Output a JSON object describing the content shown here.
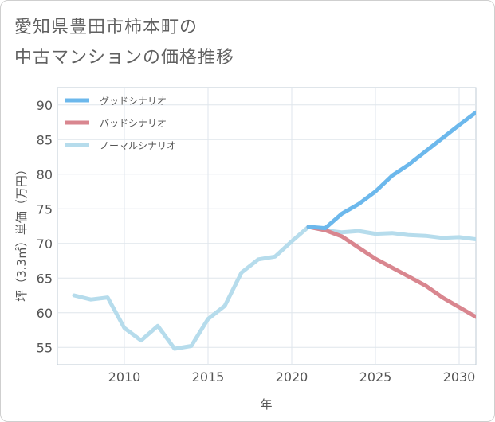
{
  "title_lines": [
    "愛知県豊田市柿本町の",
    "中古マンションの価格推移"
  ],
  "chart_data": {
    "type": "line",
    "xlabel": "年",
    "ylabel": "坪（3.3㎡）単価（万円）",
    "xlim": [
      2006,
      2031
    ],
    "ylim": [
      52.5,
      92.5
    ],
    "x_ticks": [
      2010,
      2015,
      2020,
      2025,
      2030
    ],
    "y_ticks": [
      55,
      60,
      65,
      70,
      75,
      80,
      85,
      90
    ],
    "grid": true,
    "legend_position": "top-left",
    "series": [
      {
        "name": "グッドシナリオ",
        "color": "#6cb8ec",
        "x": [
          2021,
          2022,
          2023,
          2024,
          2025,
          2026,
          2027,
          2028,
          2029,
          2030,
          2031
        ],
        "y": [
          72.4,
          72.2,
          74.3,
          75.7,
          77.5,
          79.8,
          81.4,
          83.3,
          85.2,
          87.1,
          88.9
        ]
      },
      {
        "name": "バッドシナリオ",
        "color": "#d9868f",
        "x": [
          2021,
          2022,
          2023,
          2024,
          2025,
          2026,
          2027,
          2028,
          2029,
          2030,
          2031
        ],
        "y": [
          72.4,
          71.9,
          71.0,
          69.4,
          67.8,
          66.5,
          65.2,
          63.9,
          62.2,
          60.8,
          59.4
        ]
      },
      {
        "name": "ノーマルシナリオ",
        "color": "#b6dcec",
        "x": [
          2007,
          2008,
          2009,
          2010,
          2011,
          2012,
          2013,
          2014,
          2015,
          2016,
          2017,
          2018,
          2019,
          2020,
          2021,
          2022,
          2023,
          2024,
          2025,
          2026,
          2027,
          2028,
          2029,
          2030,
          2031
        ],
        "y": [
          62.5,
          61.9,
          62.2,
          57.8,
          56.0,
          58.1,
          54.8,
          55.2,
          59.1,
          61.0,
          65.8,
          67.7,
          68.1,
          70.3,
          72.4,
          71.9,
          71.6,
          71.8,
          71.4,
          71.5,
          71.2,
          71.1,
          70.8,
          70.9,
          70.6
        ]
      }
    ]
  }
}
